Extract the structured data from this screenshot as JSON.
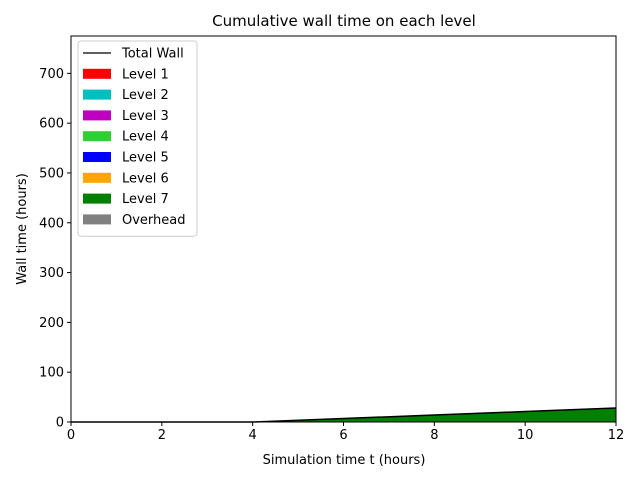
{
  "chart_data": {
    "type": "area",
    "title": "Cumulative wall time on each level",
    "xlabel": "Simulation time t (hours)",
    "ylabel": "Wall time (hours)",
    "xlim": [
      0,
      12
    ],
    "ylim": [
      0,
      775
    ],
    "xticks": [
      0,
      2,
      4,
      6,
      8,
      10,
      12
    ],
    "yticks": [
      0,
      100,
      200,
      300,
      400,
      500,
      600,
      700
    ],
    "grid": false,
    "legend_position": "upper-left",
    "x": [
      0,
      2,
      4,
      6,
      8,
      10,
      12
    ],
    "total_wall": {
      "name": "Total Wall",
      "color": "#000000",
      "values": [
        0,
        0,
        0,
        7,
        14,
        21,
        28
      ]
    },
    "series": [
      {
        "name": "Level 1",
        "color": "#ff0000",
        "values": [
          0,
          0,
          0,
          0,
          0,
          0,
          0
        ]
      },
      {
        "name": "Level 2",
        "color": "#00bfbf",
        "values": [
          0,
          0,
          0,
          0,
          0,
          0,
          0
        ]
      },
      {
        "name": "Level 3",
        "color": "#bf00bf",
        "values": [
          0,
          0,
          0,
          0,
          0,
          0,
          0
        ]
      },
      {
        "name": "Level 4",
        "color": "#32cd32",
        "values": [
          0,
          0,
          0,
          0,
          0,
          0,
          0
        ]
      },
      {
        "name": "Level 5",
        "color": "#0000ff",
        "values": [
          0,
          0,
          0,
          0,
          0,
          0,
          0
        ]
      },
      {
        "name": "Level 6",
        "color": "#ffa500",
        "values": [
          0,
          0,
          0,
          0,
          0,
          0,
          0
        ]
      },
      {
        "name": "Level 7",
        "color": "#008000",
        "values": [
          0,
          0,
          0,
          7,
          14,
          21,
          28
        ]
      },
      {
        "name": "Overhead",
        "color": "#808080",
        "values": [
          0,
          0,
          0,
          0,
          0,
          0,
          0
        ]
      }
    ]
  }
}
